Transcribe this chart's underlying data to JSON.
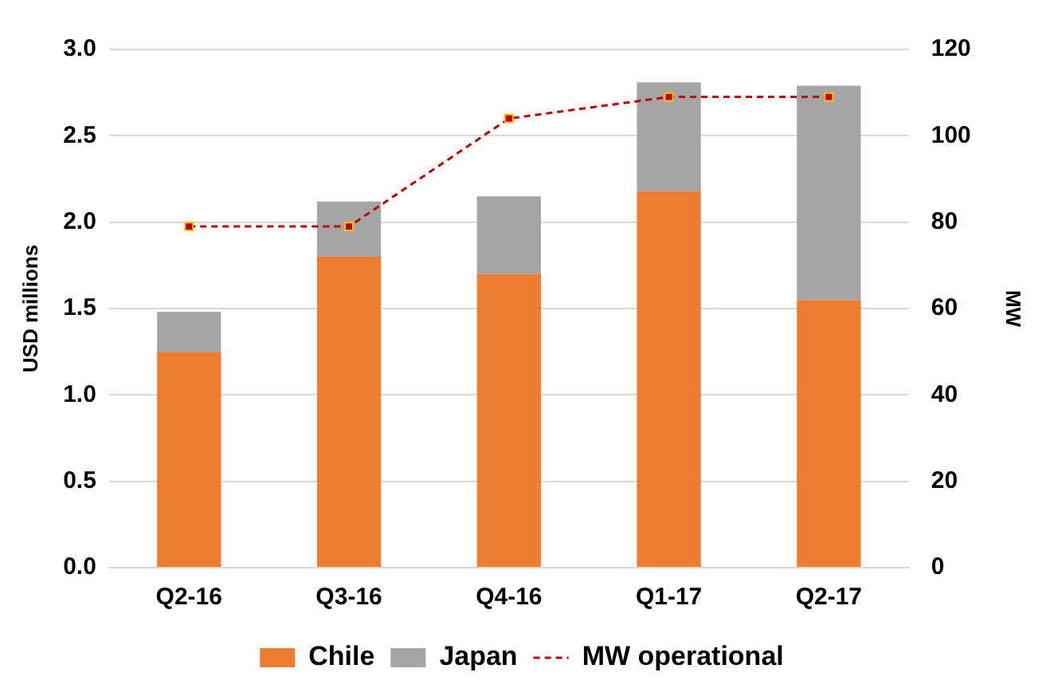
{
  "chart_data": {
    "type": "bar",
    "stacked": true,
    "ylabel": "USD millions",
    "y2label": "MW",
    "categories": [
      "Q2-16",
      "Q3-16",
      "Q4-16",
      "Q1-17",
      "Q2-17"
    ],
    "series": [
      {
        "name": "Chile",
        "color": "#ed7d31",
        "values": [
          1.25,
          1.8,
          1.7,
          2.18,
          1.55
        ]
      },
      {
        "name": "Japan",
        "color": "#a5a5a5",
        "values": [
          0.23,
          0.32,
          0.45,
          0.63,
          1.24
        ]
      },
      {
        "name": "MW operational",
        "type": "line",
        "axis": "y2",
        "color": "#c00000",
        "marker": "square",
        "line_style": "dashed",
        "values": [
          79,
          79,
          104,
          109,
          109
        ]
      }
    ],
    "ylim": [
      0,
      3.0
    ],
    "yticks": [
      {
        "value": 0,
        "label": "0.0"
      },
      {
        "value": 0.5,
        "label": "0.5"
      },
      {
        "value": 1,
        "label": "1.0"
      },
      {
        "value": 1.5,
        "label": "1.5"
      },
      {
        "value": 2,
        "label": "2.0"
      },
      {
        "value": 2.5,
        "label": "2.5"
      },
      {
        "value": 3,
        "label": "3.0"
      }
    ],
    "y2lim": [
      0,
      120
    ],
    "y2ticks": [
      0,
      20,
      40,
      60,
      80,
      100,
      120
    ],
    "grid": "y",
    "legend": "bottom"
  }
}
